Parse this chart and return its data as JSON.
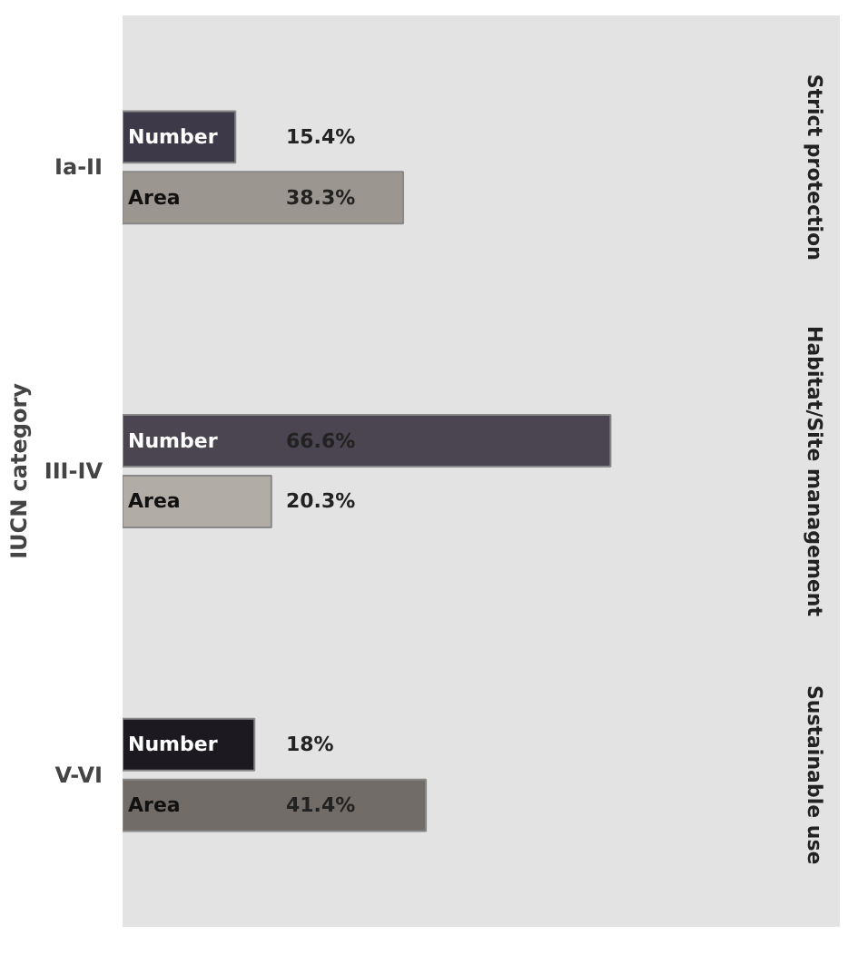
{
  "chart_data": {
    "type": "bar",
    "orientation": "horizontal",
    "ylabel": "IUCN category",
    "categories": [
      "Ia-II",
      "III-IV",
      "V-VI"
    ],
    "series": [
      {
        "name": "Number",
        "colors": [
          "#3e3948",
          "#4a4550",
          "#1c1a20"
        ],
        "values": [
          15.4,
          66.6,
          18
        ],
        "value_labels": [
          "15.4%",
          "66.6%",
          "18%"
        ]
      },
      {
        "name": "Area",
        "colors": [
          "#9c9690",
          "#b2aca7",
          "#716c68"
        ],
        "values": [
          38.3,
          20.3,
          41.4
        ],
        "value_labels": [
          "38.3%",
          "20.3%",
          "41.4%"
        ]
      }
    ],
    "annotations": [
      "Strict protection",
      "Habitat/Site management",
      "Sustainable use"
    ]
  }
}
